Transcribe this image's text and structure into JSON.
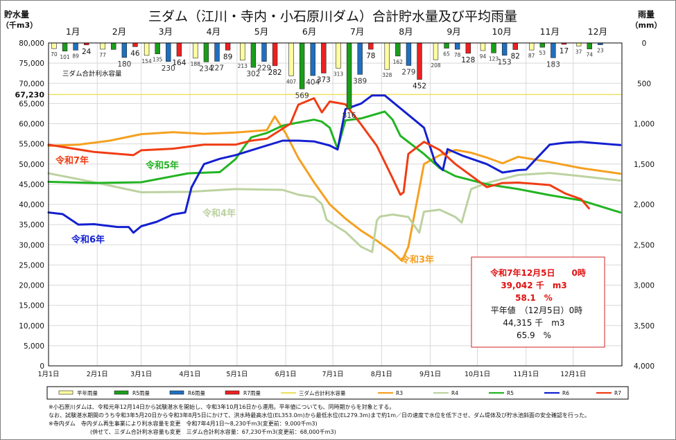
{
  "chart_data": {
    "type": "line",
    "title": "三ダム（江川・寺内・小石原川ダム）合計貯水量及び平均雨量",
    "ylabel_left": [
      "貯水量",
      "（千m3）"
    ],
    "ylabel_right": [
      "雨量",
      "（mm）"
    ],
    "y_left_ticks": [
      "0",
      "5,000",
      "10,000",
      "15,000",
      "20,000",
      "25,000",
      "30,000",
      "35,000",
      "40,000",
      "45,000",
      "50,000",
      "55,000",
      "60,000",
      "65,000",
      "70,000",
      "75,000",
      "80,000"
    ],
    "y_left_lim": [
      0,
      80000
    ],
    "y_right_ticks": [
      "0",
      "500",
      "1,000",
      "1,500",
      "2,000",
      "2,500",
      "3,000",
      "3,500",
      "4,000"
    ],
    "y_right_lim": [
      0,
      4000
    ],
    "x_ticks": [
      "1月1日",
      "2月1日",
      "3月1日",
      "4月1日",
      "5月1日",
      "6月1日",
      "7月1日",
      "8月1日",
      "9月1日",
      "10月1日",
      "11月1日",
      "12月1日"
    ],
    "months_top": [
      "1月",
      "2月",
      "3月",
      "4月",
      "5月",
      "6月",
      "7月",
      "8月",
      "9月",
      "10月",
      "11月",
      "12月"
    ],
    "capacity": {
      "value": 67230,
      "label": "67,230",
      "name": "三ダム合計利水容量",
      "color": "#f0e060"
    },
    "rain": {
      "series": [
        {
          "name": "平年雨量",
          "color": "#ffffa0",
          "values": [
            70,
            77,
            154,
            188,
            213,
            407,
            313,
            328,
            208,
            94,
            87,
            37
          ],
          "labels": [
            "70",
            "77",
            "154",
            "188",
            "213",
            "407",
            "313",
            "328",
            "208",
            "94",
            "87",
            "37"
          ]
        },
        {
          "name": "R5雨量",
          "color": "#1a9e1a",
          "values": [
            101,
            80,
            135,
            234,
            302,
            569,
            816,
            162,
            65,
            123,
            53,
            74
          ],
          "labels": [
            "101",
            "",
            "135",
            "234",
            "302",
            "569",
            "816",
            "162",
            "65",
            "123",
            "53",
            "74"
          ]
        },
        {
          "name": "R6雨量",
          "color": "#1f6fc0",
          "values": [
            89,
            180,
            230,
            227,
            229,
            404,
            389,
            279,
            78,
            153,
            183,
            23
          ],
          "labels": [
            "89",
            "180",
            "230",
            "227",
            "229",
            "404",
            "389",
            "279",
            "78",
            "153",
            "183",
            "23"
          ]
        },
        {
          "name": "R7雨量",
          "color": "#ee2020",
          "values": [
            24,
            46,
            164,
            89,
            282,
            373,
            78,
            452,
            128,
            82,
            17,
            0
          ],
          "labels": [
            "24",
            "46",
            "164",
            "89",
            "282",
            "373",
            "78",
            "452",
            "128",
            "82",
            "17",
            ""
          ]
        }
      ]
    },
    "storage": {
      "x_unit": "day_of_year",
      "series": [
        {
          "name": "R3",
          "label": "令和3年",
          "color": "#f5a020",
          "x": [
            1,
            20,
            40,
            60,
            80,
            100,
            120,
            140,
            145,
            152,
            160,
            170,
            180,
            190,
            200,
            210,
            220,
            226,
            230,
            240,
            250,
            260,
            270,
            280,
            290,
            300,
            320,
            340,
            365
          ],
          "y": [
            54500,
            54800,
            55800,
            57400,
            57900,
            57500,
            57800,
            58400,
            61800,
            57600,
            51500,
            45500,
            40000,
            36500,
            33500,
            31000,
            28200,
            26000,
            29500,
            50000,
            52200,
            53500,
            52800,
            51600,
            50200,
            51800,
            50500,
            49000,
            47600
          ]
        },
        {
          "name": "R4",
          "label": "令和4年",
          "color": "#bcd2a0",
          "x": [
            1,
            30,
            60,
            90,
            120,
            150,
            160,
            170,
            175,
            178,
            185,
            190,
            200,
            207,
            210,
            212,
            220,
            230,
            237,
            240,
            250,
            260,
            264,
            270,
            280,
            300,
            320,
            340,
            365
          ],
          "y": [
            47700,
            45500,
            43000,
            43100,
            43800,
            43600,
            42400,
            41800,
            40100,
            36200,
            34400,
            33200,
            29500,
            28200,
            36000,
            37000,
            37500,
            36900,
            33000,
            38200,
            38700,
            36900,
            35500,
            43800,
            45300,
            47300,
            47800,
            47000,
            45900
          ]
        },
        {
          "name": "R5",
          "label": "令和5年",
          "color": "#22b422",
          "x": [
            1,
            30,
            60,
            90,
            110,
            120,
            125,
            130,
            140,
            150,
            160,
            170,
            175,
            180,
            185,
            190,
            200,
            215,
            220,
            225,
            240,
            250,
            260,
            270,
            280,
            300,
            320,
            340,
            365
          ],
          "y": [
            45600,
            45300,
            45500,
            47700,
            48000,
            51200,
            54000,
            56600,
            57700,
            59500,
            60300,
            61000,
            60500,
            59000,
            53800,
            60800,
            61300,
            63000,
            61000,
            57000,
            52500,
            49000,
            47000,
            46000,
            45000,
            43800,
            42300,
            41000,
            38000
          ]
        },
        {
          "name": "R6",
          "label": "令和6年",
          "color": "#1420d0",
          "x": [
            1,
            10,
            20,
            30,
            45,
            52,
            55,
            60,
            70,
            80,
            88,
            92,
            100,
            110,
            120,
            130,
            150,
            160,
            170,
            180,
            185,
            190,
            200,
            207,
            215,
            240,
            247,
            252,
            255,
            265,
            280,
            290,
            300,
            305,
            310,
            320,
            330,
            340,
            365
          ],
          "y": [
            38000,
            37600,
            35000,
            35100,
            34400,
            34400,
            33000,
            34600,
            35700,
            37500,
            38000,
            44200,
            50000,
            51300,
            52200,
            53400,
            55800,
            55800,
            55600,
            54600,
            53600,
            63600,
            65000,
            67000,
            67000,
            59000,
            50500,
            48500,
            53700,
            52000,
            50000,
            47900,
            48500,
            48600,
            50700,
            54800,
            55300,
            55500,
            54700
          ]
        },
        {
          "name": "R7",
          "label": "令和7年",
          "color": "#f03c14",
          "x": [
            1,
            30,
            55,
            60,
            80,
            100,
            120,
            130,
            140,
            155,
            160,
            170,
            175,
            180,
            190,
            200,
            210,
            220,
            225,
            227,
            230,
            240,
            250,
            260,
            275,
            280,
            290,
            300,
            310,
            320,
            330,
            340,
            345
          ],
          "y": [
            54800,
            53000,
            52200,
            53400,
            53800,
            54800,
            54800,
            55800,
            56300,
            60000,
            64700,
            66300,
            62800,
            65500,
            64800,
            59800,
            54500,
            46500,
            42400,
            43000,
            52500,
            55500,
            53500,
            50000,
            45700,
            44300,
            45300,
            45400,
            45100,
            44800,
            42700,
            41300,
            39042
          ]
        }
      ]
    },
    "legend": [
      {
        "name": "平年雨量",
        "kind": "bar",
        "color": "#ffffa0"
      },
      {
        "name": "R5雨量",
        "kind": "bar",
        "color": "#1a9e1a"
      },
      {
        "name": "R6雨量",
        "kind": "bar",
        "color": "#1f6fc0"
      },
      {
        "name": "R7雨量",
        "kind": "bar",
        "color": "#ee2020"
      },
      {
        "name": "三ダム合計利水容量",
        "kind": "line",
        "color": "#f0e060"
      },
      {
        "name": "R3",
        "kind": "line",
        "color": "#f5a020"
      },
      {
        "name": "R4",
        "kind": "line",
        "color": "#bcd2a0"
      },
      {
        "name": "R5",
        "kind": "line",
        "color": "#22b422"
      },
      {
        "name": "R6",
        "kind": "line",
        "color": "#1420d0"
      },
      {
        "name": "R7",
        "kind": "line",
        "color": "#f03c14"
      }
    ],
    "info_box": {
      "title": "令和7年12月5日　　0時",
      "value": "39,042 千　m3",
      "percent": "58.1　%",
      "normal_title": "平年値　（12月5日）0時",
      "normal_value": "44,315 千　m3",
      "normal_percent": "65.9　%"
    },
    "notes": [
      "※小石原川ダムは、令和元年12月14日から試験湛水を開始し、令和3年10月16日から運用。平年値についても、同時期からを対象とする。",
      "なお、試験湛水期間のうち令和3年5月20日から令和3年8月5日にかけて、洪水時最高水位(EL353.0m)から最低水位(EL279.3m)まで約1m／日の速度で水位を低下させ、ダム堤体及び貯水池斜面の安全確認を行った。",
      "※寺内ダム　寺内ダム再生事業により利水容量を変更　令和7年4月1日～8,230千m3(変更前：9,000千m3)",
      "(併せて、三ダム合計利水容量も変更　三ダム合計利水容量：67,230千m3(変更前：68,000千m3)"
    ]
  }
}
